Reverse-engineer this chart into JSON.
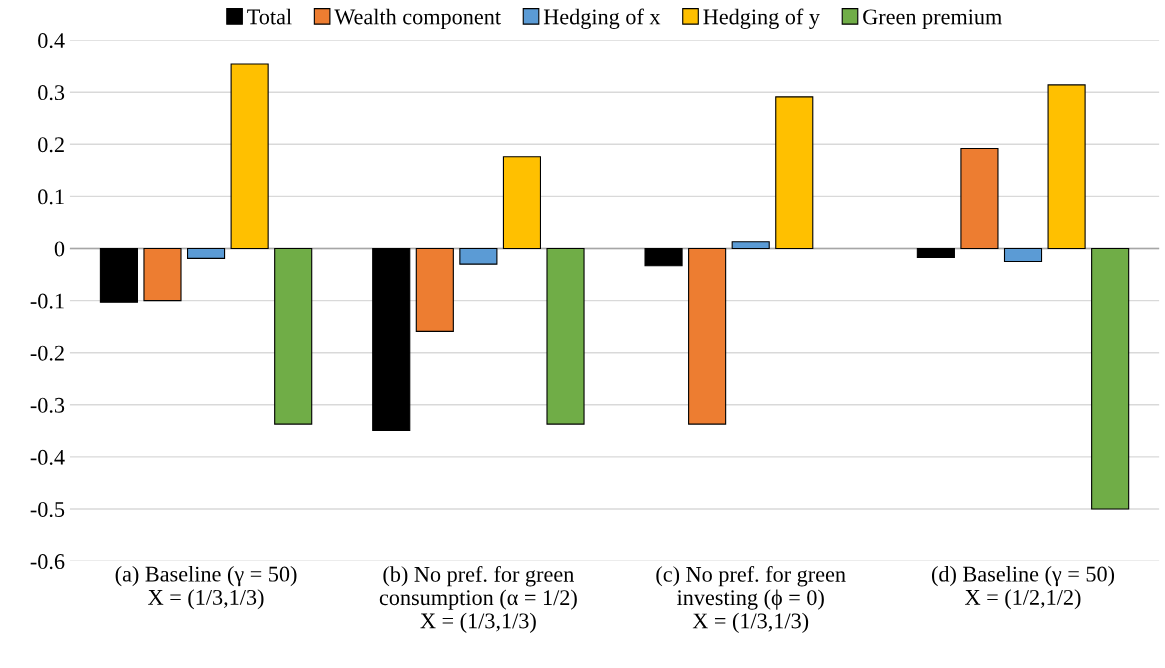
{
  "chart_data": {
    "type": "bar",
    "categories": [
      "(a) Baseline (γ = 50)\nX = (1/3,1/3)",
      "(b) No pref. for green\nconsumption (α = 1/2)\nX = (1/3,1/3)",
      "(c) No pref. for green\ninvesting (ϕ = 0)\nX = (1/3,1/3)",
      "(d) Baseline (γ = 50)\nX = (1/2,1/2)"
    ],
    "series": [
      {
        "name": "Total",
        "color": "#000000",
        "values": [
          -0.103,
          -0.349,
          -0.033,
          -0.017
        ]
      },
      {
        "name": "Wealth component",
        "color": "#ed7d31",
        "values": [
          -0.1,
          -0.159,
          -0.337,
          0.192
        ]
      },
      {
        "name": "Hedging of x",
        "color": "#5b9bd5",
        "values": [
          -0.019,
          -0.03,
          0.013,
          -0.025
        ]
      },
      {
        "name": "Hedging of y",
        "color": "#ffc000",
        "values": [
          0.354,
          0.176,
          0.291,
          0.314
        ]
      },
      {
        "name": "Green premium",
        "color": "#70ad47",
        "values": [
          -0.337,
          -0.337,
          null,
          -0.5
        ]
      }
    ],
    "ylim": [
      -0.6,
      0.4
    ],
    "yticks": [
      -0.6,
      -0.5,
      -0.4,
      -0.3,
      -0.2,
      -0.1,
      0,
      0.1,
      0.2,
      0.3,
      0.4
    ],
    "grid": "y",
    "legend": "top"
  }
}
